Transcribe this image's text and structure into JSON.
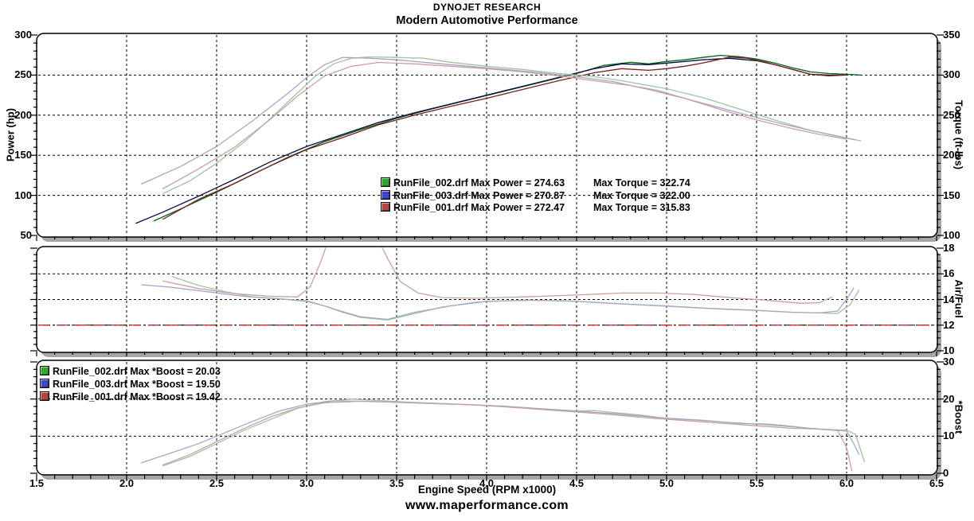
{
  "header": {
    "title": "DYNOJET RESEARCH",
    "subtitle": "Modern Automotive Performance"
  },
  "footer": {
    "website": "www.maperformance.com"
  },
  "colors": {
    "shadow": "#a6a6a6",
    "panel_border": "#000000",
    "grid": "#000000",
    "reference_red": "#d42020",
    "run2_dark": "#006414",
    "run3_dark": "#0a0a46",
    "run1_dark": "#7a1e1e",
    "run2_light": "#a0c4a0",
    "run3_light": "#a8a4c8",
    "run1_light": "#c8a0a4",
    "swatch_green": "#2fa82f",
    "swatch_blue": "#4343c8",
    "swatch_red": "#b04343"
  },
  "x_axis": {
    "label": "Engine Speed (RPM x1000)",
    "min": 1.5,
    "max": 6.5,
    "ticks": [
      "1.5",
      "2.0",
      "2.5",
      "3.0",
      "3.5",
      "4.0",
      "4.5",
      "5.0",
      "5.5",
      "6.0",
      "6.5"
    ]
  },
  "chart_data": [
    {
      "type": "line",
      "name": "power-torque-panel",
      "left_axis": {
        "label": "Power (hp)",
        "min": 50,
        "max": 300,
        "ticks": [
          300,
          250,
          200,
          150,
          100,
          50
        ]
      },
      "right_axis": {
        "label": "Torque (ft-lbs)",
        "min": 100,
        "max": 350,
        "ticks": [
          350,
          300,
          250,
          200,
          150,
          100
        ]
      },
      "grid_lines": {
        "axis": "left",
        "values": [
          250,
          200,
          150,
          100
        ]
      },
      "legend": [
        {
          "color": "#2fa82f",
          "label": "RunFile_002.drf Max Power = 274.63",
          "label2": "Max Torque = 322.74"
        },
        {
          "color": "#4343c8",
          "label": "RunFile_003.drf Max Power = 270.87",
          "label2": "Max Torque = 322.00"
        },
        {
          "color": "#b04343",
          "label": "RunFile_001.drf Max Power = 272.47",
          "label2": "Max Torque = 315.83"
        }
      ],
      "series": [
        {
          "name": "RunFile_002 Power",
          "axis": "left",
          "color": "#006414",
          "x": [
            2.15,
            2.3,
            2.5,
            2.7,
            2.9,
            3.1,
            3.3,
            3.5,
            3.7,
            3.9,
            4.1,
            4.3,
            4.5,
            4.65,
            4.8,
            4.9,
            5.0,
            5.1,
            5.2,
            5.3,
            5.4,
            5.5,
            5.6,
            5.7,
            5.8,
            5.9,
            6.0,
            6.08
          ],
          "y": [
            68,
            83,
            104,
            126,
            148,
            167,
            182,
            196,
            208,
            219,
            230,
            241,
            252,
            262,
            266,
            264,
            267,
            269,
            272,
            274.6,
            273,
            270,
            265,
            259,
            254,
            252,
            251,
            250
          ]
        },
        {
          "name": "RunFile_003 Power",
          "axis": "left",
          "color": "#0a0a46",
          "x": [
            2.05,
            2.2,
            2.4,
            2.6,
            2.8,
            3.0,
            3.2,
            3.4,
            3.6,
            3.8,
            4.0,
            4.2,
            4.4,
            4.6,
            4.75,
            4.9,
            5.0,
            5.1,
            5.2,
            5.35,
            5.5,
            5.6,
            5.7,
            5.8,
            5.9,
            6.0
          ],
          "y": [
            65,
            79,
            99,
            120,
            142,
            161,
            176,
            191,
            203,
            214,
            225,
            236,
            247,
            258,
            264,
            263,
            265,
            267,
            269,
            270.9,
            268,
            263,
            257,
            251,
            250,
            250
          ]
        },
        {
          "name": "RunFile_001 Power",
          "axis": "left",
          "color": "#7a1e1e",
          "x": [
            2.2,
            2.4,
            2.6,
            2.8,
            3.0,
            3.2,
            3.4,
            3.6,
            3.8,
            4.0,
            4.2,
            4.4,
            4.6,
            4.75,
            4.9,
            5.0,
            5.1,
            5.2,
            5.35,
            5.45,
            5.55,
            5.7,
            5.8,
            5.9,
            6.0
          ],
          "y": [
            70,
            95,
            115,
            137,
            157,
            172,
            188,
            200,
            211,
            221,
            232,
            243,
            253,
            258,
            256,
            258,
            261,
            265,
            272.5,
            271,
            266,
            257,
            251,
            249,
            250
          ]
        },
        {
          "name": "RunFile_002 Torque",
          "axis": "right",
          "color": "#a0c4a0",
          "x": [
            2.2,
            2.35,
            2.5,
            2.65,
            2.8,
            2.95,
            3.05,
            3.15,
            3.25,
            3.35,
            3.5,
            3.65,
            3.8,
            4.0,
            4.2,
            4.4,
            4.6,
            4.75,
            4.9,
            5.0,
            5.2,
            5.4,
            5.6,
            5.8,
            5.95,
            6.08
          ],
          "y": [
            152,
            168,
            190,
            216,
            246,
            278,
            299,
            314,
            321,
            322.7,
            322,
            321,
            316,
            311,
            307,
            302,
            298,
            293,
            287,
            283,
            272,
            258,
            244,
            231,
            224,
            218
          ]
        },
        {
          "name": "RunFile_003 Torque",
          "axis": "right",
          "color": "#a8a4c8",
          "x": [
            2.08,
            2.3,
            2.5,
            2.7,
            2.9,
            3.0,
            3.1,
            3.2,
            3.35,
            3.5,
            3.7,
            3.9,
            4.1,
            4.3,
            4.5,
            4.7,
            4.9,
            5.1,
            5.3,
            5.5,
            5.7,
            5.9,
            6.05
          ],
          "y": [
            164,
            186,
            211,
            243,
            278,
            297,
            313,
            322,
            321,
            319,
            315,
            311,
            307,
            303,
            298,
            292,
            282,
            271,
            259,
            247,
            236,
            226,
            219
          ]
        },
        {
          "name": "RunFile_001 Torque",
          "axis": "right",
          "color": "#c8a0a4",
          "x": [
            2.2,
            2.4,
            2.6,
            2.8,
            2.95,
            3.1,
            3.25,
            3.4,
            3.6,
            3.8,
            4.0,
            4.2,
            4.4,
            4.6,
            4.8,
            4.95,
            5.1,
            5.3,
            5.5,
            5.7,
            5.85,
            6.0
          ],
          "y": [
            158,
            183,
            210,
            245,
            274,
            299,
            311,
            315.8,
            314,
            311,
            308,
            304,
            299,
            293,
            287,
            281,
            271,
            257,
            244,
            233,
            226,
            220
          ]
        }
      ]
    },
    {
      "type": "line",
      "name": "air-fuel-panel",
      "right_axis": {
        "label": "Air/Fuel",
        "min": 10,
        "max": 18,
        "ticks": [
          18,
          16,
          14,
          12,
          10
        ]
      },
      "grid_lines": {
        "axis": "right",
        "values": [
          16,
          14,
          12
        ]
      },
      "reference_line": {
        "value": 12,
        "color": "#d42020"
      },
      "legend": [],
      "series": [
        {
          "name": "RunFile_002 AirFuel",
          "axis": "right",
          "color": "#a0c4a0",
          "x": [
            2.25,
            2.4,
            2.55,
            2.7,
            2.85,
            3.0,
            3.1,
            3.2,
            3.3,
            3.45,
            3.6,
            3.75,
            3.95,
            4.2,
            4.45,
            4.7,
            4.9,
            5.1,
            5.3,
            5.5,
            5.7,
            5.85,
            5.95,
            6.02,
            6.07
          ],
          "y": [
            15.8,
            15.1,
            14.6,
            14.2,
            14.05,
            13.9,
            13.5,
            13.0,
            12.6,
            12.4,
            12.9,
            13.4,
            13.8,
            13.95,
            13.9,
            13.7,
            13.55,
            13.4,
            13.25,
            13.15,
            13.0,
            12.95,
            12.9,
            13.6,
            14.75
          ]
        },
        {
          "name": "RunFile_003 AirFuel",
          "axis": "right",
          "color": "#a8a4c8",
          "x": [
            2.08,
            2.25,
            2.45,
            2.65,
            2.85,
            3.0,
            3.1,
            3.2,
            3.3,
            3.45,
            3.6,
            3.8,
            4.0,
            4.25,
            4.5,
            4.75,
            5.0,
            5.25,
            5.5,
            5.7,
            5.85,
            5.95,
            6.0,
            6.04
          ],
          "y": [
            15.15,
            14.95,
            14.6,
            14.25,
            14.05,
            13.85,
            13.5,
            13.05,
            12.65,
            12.45,
            13.0,
            13.5,
            13.85,
            13.95,
            13.85,
            13.65,
            13.5,
            13.3,
            13.15,
            13.0,
            12.95,
            13.1,
            14.0,
            14.9
          ]
        },
        {
          "name": "RunFile_001 AirFuel",
          "axis": "right",
          "color": "#c8a0a4",
          "x": [
            2.2,
            2.4,
            2.6,
            2.8,
            2.95,
            3.02,
            3.08,
            3.12,
            3.4,
            3.45,
            3.52,
            3.62,
            3.75,
            3.95,
            4.2,
            4.5,
            4.75,
            4.95,
            5.15,
            5.35,
            5.55,
            5.75,
            5.85,
            5.92
          ],
          "y": [
            15.45,
            14.85,
            14.45,
            14.25,
            14.2,
            15.0,
            17.0,
            18.6,
            18.6,
            17.2,
            15.4,
            14.5,
            14.15,
            14.1,
            14.2,
            14.35,
            14.5,
            14.5,
            14.4,
            14.15,
            13.95,
            13.7,
            13.75,
            14.2
          ]
        }
      ]
    },
    {
      "type": "line",
      "name": "boost-panel",
      "right_axis": {
        "label": "*Boost",
        "min": 0,
        "max": 30,
        "ticks": [
          30,
          20,
          10,
          0
        ]
      },
      "grid_lines": {
        "axis": "right",
        "values": [
          20,
          10
        ]
      },
      "legend": [
        {
          "color": "#2fa82f",
          "label": "RunFile_002.drf Max *Boost = 20.03"
        },
        {
          "color": "#4343c8",
          "label": "RunFile_003.drf Max *Boost = 19.50"
        },
        {
          "color": "#b04343",
          "label": "RunFile_001.drf Max *Boost = 19.42"
        }
      ],
      "series": [
        {
          "name": "RunFile_002 Boost",
          "axis": "right",
          "color": "#a0c4a0",
          "x": [
            2.2,
            2.35,
            2.5,
            2.65,
            2.8,
            2.95,
            3.1,
            3.25,
            3.4,
            3.55,
            3.7,
            3.9,
            4.1,
            4.3,
            4.5,
            4.6,
            4.7,
            4.85,
            5.0,
            5.2,
            5.4,
            5.55,
            5.65,
            5.8,
            5.9,
            6.0,
            6.05,
            6.1
          ],
          "y": [
            2,
            4.5,
            8,
            11.5,
            14.5,
            17.5,
            19.3,
            20.0,
            19.6,
            19.2,
            18.9,
            18.5,
            18.1,
            17.4,
            16.8,
            16.9,
            16.4,
            15.7,
            14.8,
            14.3,
            13.4,
            13.3,
            12.9,
            12.1,
            11.8,
            11.6,
            10.5,
            3
          ]
        },
        {
          "name": "RunFile_003 Boost",
          "axis": "right",
          "color": "#a8a4c8",
          "x": [
            2.08,
            2.25,
            2.4,
            2.55,
            2.7,
            2.85,
            3.0,
            3.15,
            3.35,
            3.55,
            3.75,
            3.95,
            4.15,
            4.35,
            4.55,
            4.75,
            4.95,
            5.15,
            5.35,
            5.55,
            5.75,
            5.9,
            6.0,
            6.04,
            6.07
          ],
          "y": [
            2.8,
            5.5,
            8,
            11,
            14,
            16.8,
            18.6,
            19.5,
            19.4,
            19.1,
            18.7,
            18.4,
            17.8,
            17.2,
            16.6,
            15.9,
            15.0,
            14.4,
            13.7,
            13.1,
            12.3,
            11.7,
            11.4,
            8,
            5
          ]
        },
        {
          "name": "RunFile_001 Boost",
          "axis": "right",
          "color": "#c8a0a4",
          "x": [
            2.2,
            2.35,
            2.5,
            2.65,
            2.8,
            2.95,
            3.1,
            3.3,
            3.5,
            3.7,
            3.9,
            4.1,
            4.3,
            4.5,
            4.7,
            4.9,
            5.1,
            5.3,
            5.5,
            5.7,
            5.85,
            5.95,
            6.0,
            6.03
          ],
          "y": [
            2.2,
            5,
            8.5,
            12,
            15.2,
            17.6,
            19.0,
            19.4,
            19.1,
            18.8,
            18.5,
            17.9,
            17.2,
            16.5,
            15.8,
            14.9,
            14.2,
            13.5,
            12.8,
            12.1,
            11.9,
            11.5,
            7,
            0.5
          ]
        }
      ]
    }
  ]
}
